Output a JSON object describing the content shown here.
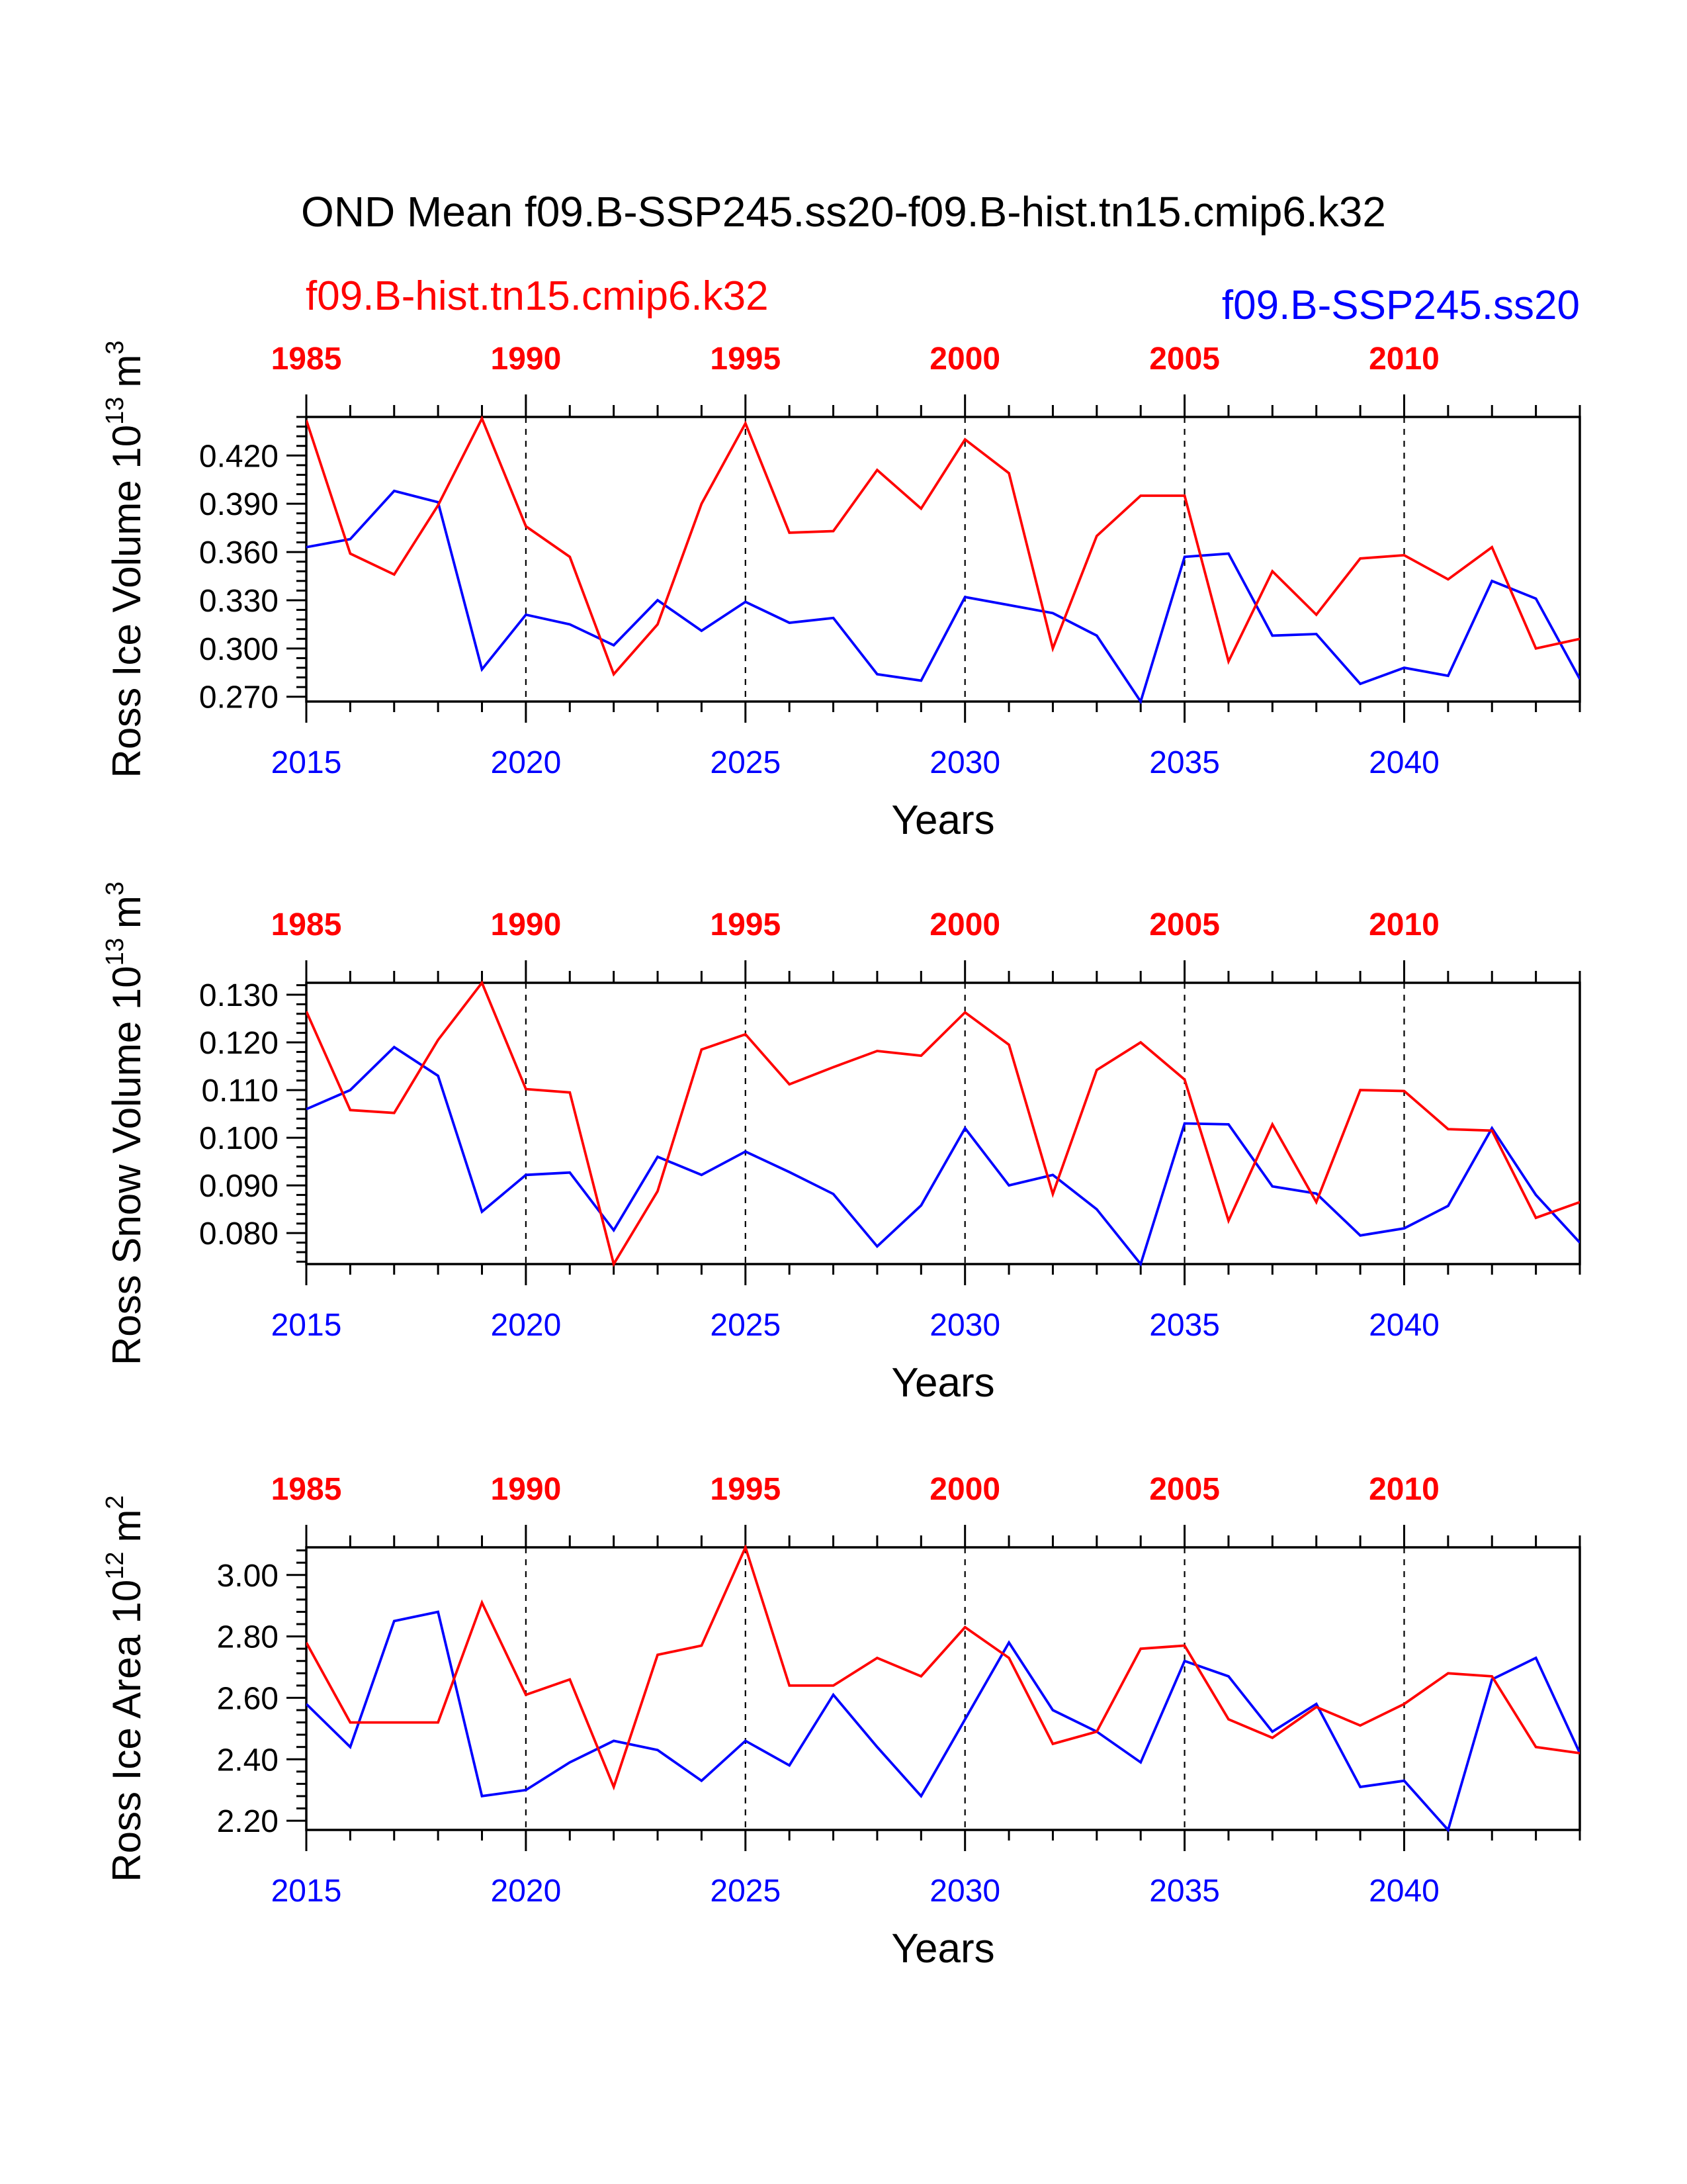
{
  "figure": {
    "title": "OND Mean f09.B-SSP245.ss20-f09.B-hist.tn15.cmip6.k32",
    "legend_hist": "f09.B-hist.tn15.cmip6.k32",
    "legend_ssp": "f09.B-SSP245.ss20",
    "colors": {
      "hist": "#ff0000",
      "ssp": "#0000ff",
      "axis": "#000000"
    }
  },
  "chart_data": [
    {
      "type": "line",
      "ylabel": "Ross Ice Volume 10",
      "ylabel_exp": "13",
      "ylabel_unit": "m",
      "ylabel_unit_exp": "3",
      "xlabel": "Years",
      "ylim": [
        0.267,
        0.444
      ],
      "yticks": [
        "0.270",
        "0.300",
        "0.330",
        "0.360",
        "0.390",
        "0.420"
      ],
      "bottom_x": [
        2015,
        2016,
        2017,
        2018,
        2019,
        2020,
        2021,
        2022,
        2023,
        2024,
        2025,
        2026,
        2027,
        2028,
        2029,
        2030,
        2031,
        2032,
        2033,
        2034,
        2035,
        2036,
        2037,
        2038,
        2039,
        2040,
        2041,
        2042,
        2043,
        2044
      ],
      "top_x": [
        1985,
        1986,
        1987,
        1988,
        1989,
        1990,
        1991,
        1992,
        1993,
        1994,
        1995,
        1996,
        1997,
        1998,
        1999,
        2000,
        2001,
        2002,
        2003,
        2004,
        2005,
        2006,
        2007,
        2008,
        2009,
        2010,
        2011,
        2012,
        2013,
        2014
      ],
      "bottom_ticks": [
        "2015",
        "2020",
        "2025",
        "2030",
        "2035",
        "2040"
      ],
      "top_ticks": [
        "1985",
        "1990",
        "1995",
        "2000",
        "2005",
        "2010"
      ],
      "series": [
        {
          "name": "f09.B-SSP245.ss20",
          "color": "#0000ff",
          "values": [
            0.363,
            0.368,
            0.398,
            0.391,
            0.287,
            0.321,
            0.315,
            0.302,
            0.33,
            0.311,
            0.329,
            0.316,
            0.319,
            0.284,
            0.28,
            0.332,
            0.327,
            0.322,
            0.308,
            0.267,
            0.357,
            0.359,
            0.308,
            0.309,
            0.278,
            0.288,
            0.283,
            0.342,
            0.331,
            0.281
          ]
        },
        {
          "name": "f09.B-hist.tn15.cmip6.k32",
          "color": "#ff0000",
          "values": [
            0.442,
            0.359,
            0.346,
            0.389,
            0.443,
            0.376,
            0.357,
            0.284,
            0.315,
            0.39,
            0.44,
            0.372,
            0.373,
            0.411,
            0.387,
            0.43,
            0.409,
            0.3,
            0.37,
            0.395,
            0.395,
            0.292,
            0.348,
            0.321,
            0.356,
            0.358,
            0.343,
            0.363,
            0.3,
            0.306
          ]
        }
      ]
    },
    {
      "type": "line",
      "ylabel": "Ross Snow Volume 10",
      "ylabel_exp": "13",
      "ylabel_unit": "m",
      "ylabel_unit_exp": "3",
      "xlabel": "Years",
      "ylim": [
        0.0735,
        0.1325
      ],
      "yticks": [
        "0.080",
        "0.090",
        "0.100",
        "0.110",
        "0.120",
        "0.130"
      ],
      "bottom_x": [
        2015,
        2016,
        2017,
        2018,
        2019,
        2020,
        2021,
        2022,
        2023,
        2024,
        2025,
        2026,
        2027,
        2028,
        2029,
        2030,
        2031,
        2032,
        2033,
        2034,
        2035,
        2036,
        2037,
        2038,
        2039,
        2040,
        2041,
        2042,
        2043,
        2044
      ],
      "top_x": [
        1985,
        1986,
        1987,
        1988,
        1989,
        1990,
        1991,
        1992,
        1993,
        1994,
        1995,
        1996,
        1997,
        1998,
        1999,
        2000,
        2001,
        2002,
        2003,
        2004,
        2005,
        2006,
        2007,
        2008,
        2009,
        2010,
        2011,
        2012,
        2013,
        2014
      ],
      "bottom_ticks": [
        "2015",
        "2020",
        "2025",
        "2030",
        "2035",
        "2040"
      ],
      "top_ticks": [
        "1985",
        "1990",
        "1995",
        "2000",
        "2005",
        "2010"
      ],
      "series": [
        {
          "name": "f09.B-SSP245.ss20",
          "color": "#0000ff",
          "values": [
            0.106,
            0.11,
            0.119,
            0.113,
            0.0845,
            0.0922,
            0.0927,
            0.0806,
            0.096,
            0.0922,
            0.0971,
            0.0928,
            0.0882,
            0.0772,
            0.0858,
            0.102,
            0.09,
            0.0922,
            0.085,
            0.0735,
            0.103,
            0.1028,
            0.0898,
            0.0883,
            0.0795,
            0.081,
            0.0857,
            0.102,
            0.088,
            0.078
          ]
        },
        {
          "name": "f09.B-hist.tn15.cmip6.k32",
          "color": "#ff0000",
          "values": [
            0.1265,
            0.1058,
            0.1052,
            0.1205,
            0.1325,
            0.1102,
            0.1095,
            0.0735,
            0.0888,
            0.1185,
            0.1217,
            0.1112,
            0.1148,
            0.1182,
            0.1172,
            0.1263,
            0.1195,
            0.0882,
            0.1142,
            0.12,
            0.1122,
            0.0826,
            0.1028,
            0.0865,
            0.11,
            0.1098,
            0.1018,
            0.1015,
            0.0832,
            0.0865
          ]
        }
      ]
    },
    {
      "type": "line",
      "ylabel": "Ross Ice Area 10",
      "ylabel_exp": "12",
      "ylabel_unit": "m",
      "ylabel_unit_exp": "2",
      "xlabel": "Years",
      "ylim": [
        2.17,
        3.09
      ],
      "yticks": [
        "2.20",
        "2.40",
        "2.60",
        "2.80",
        "3.00"
      ],
      "bottom_x": [
        2015,
        2016,
        2017,
        2018,
        2019,
        2020,
        2021,
        2022,
        2023,
        2024,
        2025,
        2026,
        2027,
        2028,
        2029,
        2030,
        2031,
        2032,
        2033,
        2034,
        2035,
        2036,
        2037,
        2038,
        2039,
        2040,
        2041,
        2042,
        2043,
        2044
      ],
      "top_x": [
        1985,
        1986,
        1987,
        1988,
        1989,
        1990,
        1991,
        1992,
        1993,
        1994,
        1995,
        1996,
        1997,
        1998,
        1999,
        2000,
        2001,
        2002,
        2003,
        2004,
        2005,
        2006,
        2007,
        2008,
        2009,
        2010,
        2011,
        2012,
        2013,
        2014
      ],
      "bottom_ticks": [
        "2015",
        "2020",
        "2025",
        "2030",
        "2035",
        "2040"
      ],
      "top_ticks": [
        "1985",
        "1990",
        "1995",
        "2000",
        "2005",
        "2010"
      ],
      "series": [
        {
          "name": "f09.B-SSP245.ss20",
          "color": "#0000ff",
          "values": [
            2.58,
            2.44,
            2.85,
            2.88,
            2.28,
            2.3,
            2.39,
            2.46,
            2.43,
            2.33,
            2.46,
            2.38,
            2.61,
            2.44,
            2.28,
            2.53,
            2.78,
            2.56,
            2.49,
            2.39,
            2.72,
            2.67,
            2.49,
            2.58,
            2.31,
            2.33,
            2.17,
            2.66,
            2.73,
            2.42
          ]
        },
        {
          "name": "f09.B-hist.tn15.cmip6.k32",
          "color": "#ff0000",
          "values": [
            2.78,
            2.52,
            2.52,
            2.52,
            2.91,
            2.61,
            2.66,
            2.31,
            2.74,
            2.77,
            3.09,
            2.64,
            2.64,
            2.73,
            2.67,
            2.83,
            2.73,
            2.45,
            2.49,
            2.76,
            2.77,
            2.53,
            2.47,
            2.57,
            2.51,
            2.58,
            2.68,
            2.67,
            2.44,
            2.42
          ]
        }
      ]
    }
  ]
}
